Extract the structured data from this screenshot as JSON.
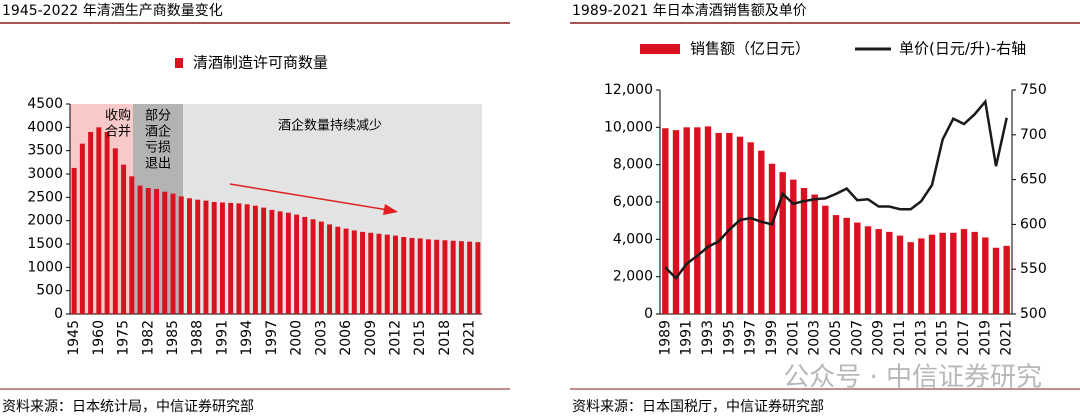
{
  "chart_data": [
    {
      "type": "bar",
      "title": "1945-2022 年清酒生产商数量变化",
      "categories": [
        "1945",
        null,
        null,
        "1960",
        null,
        null,
        "1975",
        null,
        null,
        "1982",
        null,
        null,
        "1985",
        null,
        null,
        "1988",
        null,
        null,
        "1991",
        null,
        null,
        "1994",
        null,
        null,
        "1997",
        null,
        null,
        "2000",
        null,
        null,
        "2003",
        null,
        null,
        "2006",
        null,
        null,
        "2009",
        null,
        null,
        "2012",
        null,
        null,
        "2015",
        null,
        null,
        "2018",
        null,
        null,
        "2021",
        null
      ],
      "series": [
        {
          "name": "清酒制造许可商数量",
          "color": "#d9121f",
          "values": [
            3130,
            3650,
            3900,
            4000,
            3900,
            3550,
            3200,
            2950,
            2750,
            2700,
            2680,
            2620,
            2580,
            2520,
            2480,
            2450,
            2430,
            2400,
            2390,
            2380,
            2370,
            2350,
            2320,
            2280,
            2230,
            2200,
            2170,
            2130,
            2080,
            2030,
            1980,
            1920,
            1870,
            1830,
            1790,
            1760,
            1740,
            1720,
            1700,
            1680,
            1650,
            1630,
            1620,
            1600,
            1590,
            1580,
            1570,
            1560,
            1550,
            1540
          ]
        }
      ],
      "ylim": [
        0,
        4500
      ],
      "yticks": [
        0,
        500,
        1000,
        1500,
        2000,
        2500,
        3000,
        3500,
        4000,
        4500
      ],
      "annotations": [
        [
          "收购",
          "合并"
        ],
        [
          "部分",
          "酒企",
          "亏损",
          "退出"
        ],
        [
          "酒企数量持续减少"
        ]
      ],
      "source": "资料来源：日本统计局，中信证券研究部"
    },
    {
      "type": "bar",
      "title": "1989-2021 年日本清酒销售额及单价",
      "categories": [
        "1989",
        null,
        "1991",
        null,
        "1993",
        null,
        "1995",
        null,
        "1997",
        null,
        "1999",
        null,
        "2001",
        null,
        "2003",
        null,
        "2005",
        null,
        "2007",
        null,
        "2009",
        null,
        "2011",
        null,
        "2013",
        null,
        "2015",
        null,
        "2017",
        null,
        "2019",
        null,
        "2021"
      ],
      "series": [
        {
          "name": "销售额（亿日元）",
          "color": "#d9121f",
          "values": [
            9950,
            9850,
            10000,
            10000,
            10050,
            9700,
            9700,
            9500,
            9200,
            8750,
            8050,
            7600,
            7200,
            6750,
            6400,
            5800,
            5300,
            5150,
            4900,
            4700,
            4550,
            4400,
            4200,
            3850,
            4050,
            4250,
            4350,
            4350,
            4550,
            4400,
            4100,
            3550,
            3650
          ]
        },
        {
          "name": "单价(日元/升)-右轴",
          "color": "#1a1a1a",
          "type": "line",
          "axis": "y2",
          "values": [
            552,
            540,
            556,
            565,
            575,
            581,
            594,
            605,
            607,
            603,
            600,
            634,
            623,
            626,
            628,
            629,
            634,
            640,
            627,
            628,
            620,
            620,
            617,
            617,
            626,
            644,
            695,
            718,
            712,
            723,
            737,
            665,
            719
          ]
        }
      ],
      "ylim": [
        0,
        12000
      ],
      "yticks": [
        0,
        {
          "value": 2000,
          "label": "2,000"
        },
        {
          "value": 4000,
          "label": "4,000"
        },
        {
          "value": 6000,
          "label": "6,000"
        },
        {
          "value": 8000,
          "label": "8,000"
        },
        {
          "value": 10000,
          "label": "10,000"
        },
        {
          "value": 12000,
          "label": "12,000"
        }
      ],
      "y2lim": [
        500,
        750
      ],
      "y2ticks": [
        500,
        550,
        600,
        650,
        700,
        750
      ],
      "source": "资料来源：日本国税厅，中信证券研究部",
      "watermark": "公众号 · 中信证券研究"
    }
  ]
}
